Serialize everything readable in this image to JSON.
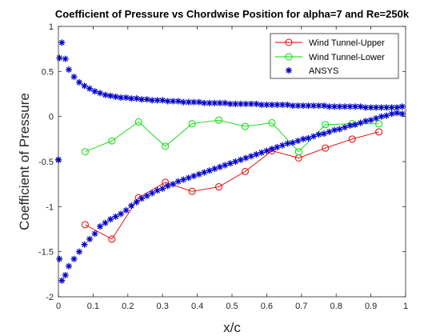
{
  "chart_data": {
    "type": "line",
    "title": "Coefficient of Pressure vs Chordwise Position for alpha=7 and Re=250k",
    "xlabel": "x/c",
    "ylabel": "Coefficient of Pressure",
    "xlim": [
      0,
      1
    ],
    "ylim": [
      -2,
      1
    ],
    "xticks": [
      "0",
      "0.1",
      "0.2",
      "0.3",
      "0.4",
      "0.5",
      "0.6",
      "0.7",
      "0.8",
      "0.9",
      "1"
    ],
    "yticks": [
      "1",
      "0.5",
      "0",
      "-0.5",
      "-1",
      "-1.5",
      "-2"
    ],
    "grid": false,
    "legend_position": "top-right",
    "series": [
      {
        "name": "Wind Tunnel-Upper",
        "color": "#e00000",
        "marker": "circle",
        "line": true,
        "x": [
          0.077,
          0.154,
          0.231,
          0.308,
          0.385,
          0.462,
          0.538,
          0.615,
          0.692,
          0.769,
          0.846,
          0.923
        ],
        "y": [
          -1.2,
          -1.36,
          -0.9,
          -0.73,
          -0.83,
          -0.78,
          -0.61,
          -0.38,
          -0.46,
          -0.35,
          -0.25,
          -0.17
        ]
      },
      {
        "name": "Wind Tunnel-Lower",
        "color": "#00dd00",
        "marker": "circle",
        "line": true,
        "x": [
          0.077,
          0.154,
          0.231,
          0.308,
          0.385,
          0.462,
          0.538,
          0.615,
          0.692,
          0.769,
          0.846,
          0.923
        ],
        "y": [
          -0.39,
          -0.27,
          -0.06,
          -0.33,
          -0.08,
          -0.04,
          -0.11,
          -0.07,
          -0.39,
          -0.09,
          -0.08,
          -0.08
        ]
      },
      {
        "name": "ANSYS",
        "color": "#0000cc",
        "marker": "asterisk",
        "line": false,
        "x": [
          0.0,
          0.003,
          0.01,
          0.02,
          0.03,
          0.045,
          0.06,
          0.075,
          0.09,
          0.105,
          0.12,
          0.135,
          0.15,
          0.165,
          0.18,
          0.195,
          0.21,
          0.225,
          0.24,
          0.255,
          0.27,
          0.285,
          0.3,
          0.315,
          0.33,
          0.345,
          0.36,
          0.375,
          0.39,
          0.405,
          0.42,
          0.435,
          0.45,
          0.465,
          0.48,
          0.495,
          0.51,
          0.525,
          0.54,
          0.555,
          0.57,
          0.585,
          0.6,
          0.615,
          0.63,
          0.645,
          0.66,
          0.675,
          0.69,
          0.705,
          0.72,
          0.735,
          0.75,
          0.765,
          0.78,
          0.795,
          0.81,
          0.825,
          0.84,
          0.855,
          0.87,
          0.885,
          0.9,
          0.915,
          0.93,
          0.945,
          0.96,
          0.975,
          0.99,
          0.0,
          0.003,
          0.01,
          0.02,
          0.03,
          0.045,
          0.06,
          0.075,
          0.09,
          0.105,
          0.12,
          0.135,
          0.15,
          0.165,
          0.18,
          0.195,
          0.21,
          0.225,
          0.24,
          0.255,
          0.27,
          0.285,
          0.3,
          0.315,
          0.33,
          0.345,
          0.36,
          0.375,
          0.39,
          0.405,
          0.42,
          0.435,
          0.45,
          0.465,
          0.48,
          0.495,
          0.51,
          0.525,
          0.54,
          0.555,
          0.57,
          0.585,
          0.6,
          0.615,
          0.63,
          0.645,
          0.66,
          0.675,
          0.69,
          0.705,
          0.72,
          0.735,
          0.75,
          0.765,
          0.78,
          0.795,
          0.81,
          0.825,
          0.84,
          0.855,
          0.87,
          0.885,
          0.9,
          0.915,
          0.93,
          0.945,
          0.96,
          0.975,
          0.99
        ],
        "y": [
          -0.48,
          0.65,
          0.82,
          0.64,
          0.52,
          0.44,
          0.38,
          0.34,
          0.31,
          0.28,
          0.26,
          0.24,
          0.23,
          0.22,
          0.21,
          0.21,
          0.2,
          0.2,
          0.19,
          0.19,
          0.18,
          0.18,
          0.18,
          0.17,
          0.17,
          0.17,
          0.16,
          0.16,
          0.16,
          0.16,
          0.15,
          0.15,
          0.15,
          0.15,
          0.15,
          0.14,
          0.14,
          0.14,
          0.14,
          0.14,
          0.14,
          0.13,
          0.13,
          0.13,
          0.13,
          0.13,
          0.13,
          0.12,
          0.12,
          0.12,
          0.12,
          0.12,
          0.12,
          0.12,
          0.11,
          0.11,
          0.11,
          0.11,
          0.11,
          0.11,
          0.11,
          0.1,
          0.1,
          0.1,
          0.1,
          0.1,
          0.1,
          0.1,
          0.11,
          -0.48,
          -1.58,
          -1.82,
          -1.76,
          -1.66,
          -1.58,
          -1.5,
          -1.42,
          -1.36,
          -1.3,
          -1.22,
          -1.18,
          -1.14,
          -1.11,
          -1.08,
          -1.04,
          -0.99,
          -0.95,
          -0.91,
          -0.88,
          -0.85,
          -0.82,
          -0.8,
          -0.77,
          -0.75,
          -0.72,
          -0.7,
          -0.68,
          -0.66,
          -0.64,
          -0.62,
          -0.6,
          -0.58,
          -0.56,
          -0.54,
          -0.52,
          -0.5,
          -0.48,
          -0.46,
          -0.44,
          -0.42,
          -0.4,
          -0.38,
          -0.36,
          -0.34,
          -0.32,
          -0.3,
          -0.29,
          -0.27,
          -0.25,
          -0.24,
          -0.22,
          -0.2,
          -0.19,
          -0.17,
          -0.15,
          -0.14,
          -0.12,
          -0.1,
          -0.09,
          -0.07,
          -0.05,
          -0.04,
          -0.02,
          0.0,
          0.01,
          0.03,
          0.04,
          0.03
        ]
      }
    ]
  }
}
